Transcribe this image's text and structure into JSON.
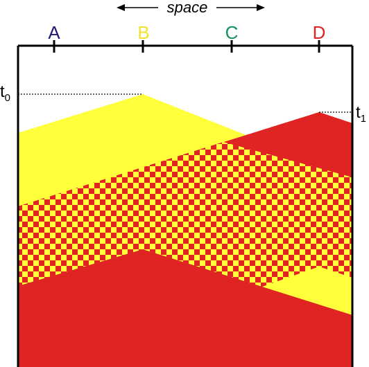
{
  "diagram": {
    "space_label": "space",
    "points": [
      {
        "name": "A",
        "color": "#1f1b72"
      },
      {
        "name": "B",
        "color": "#f2e42a"
      },
      {
        "name": "C",
        "color": "#14915a"
      },
      {
        "name": "D",
        "color": "#e02424"
      }
    ],
    "time_labels": [
      {
        "base": "t",
        "sub": "0"
      },
      {
        "base": "t",
        "sub": "1"
      }
    ],
    "colors": {
      "yellow_region": "#ffff3b",
      "red_region": "#e02424",
      "checker_a": "#ffff3b",
      "checker_b": "#e02424",
      "frame": "#000000"
    }
  }
}
